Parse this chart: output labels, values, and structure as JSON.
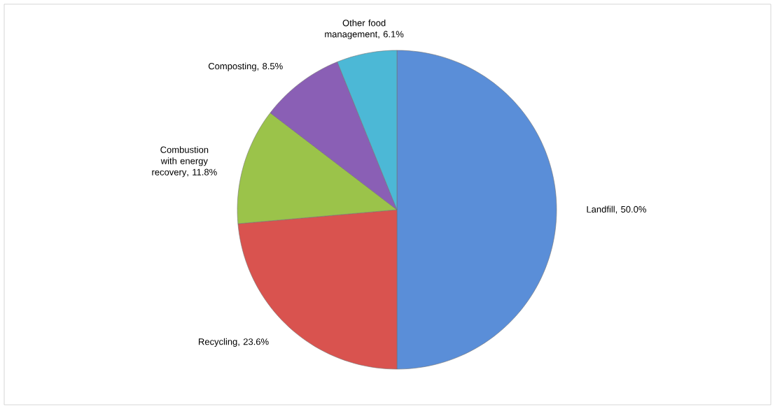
{
  "chart_data": {
    "type": "pie",
    "categories": [
      "Landfill",
      "Recycling",
      "Combustion with energy recovery",
      "Composting",
      "Other food management"
    ],
    "values": [
      50.0,
      23.6,
      11.8,
      8.5,
      6.1
    ],
    "value_labels": [
      ", 50.0%",
      ", 23.6%",
      ", 11.8%",
      ", 8.5%",
      ", 6.1%"
    ],
    "colors": [
      "#5a8ed8",
      "#d9534f",
      "#9bc34a",
      "#8a5fb5",
      "#4cb8d6"
    ]
  }
}
